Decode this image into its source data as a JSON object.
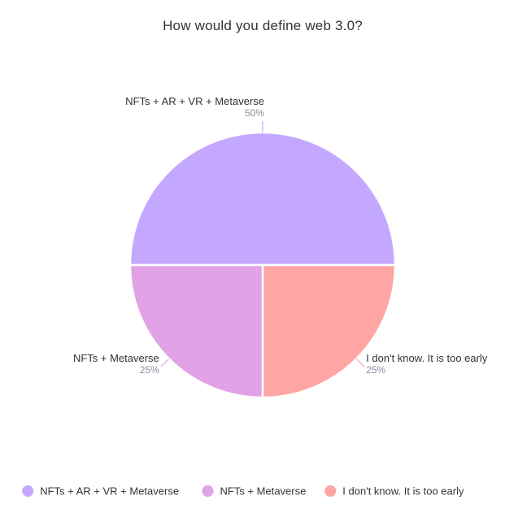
{
  "chart_data": {
    "type": "pie",
    "title": "How would you define web 3.0?",
    "slices": [
      {
        "label": "NFTs + AR + VR + Metaverse",
        "value": 50,
        "percent_label": "50%",
        "color": "#c4a8ff"
      },
      {
        "label": "I don't know. It is too early",
        "value": 25,
        "percent_label": "25%",
        "color": "#ffa5a3"
      },
      {
        "label": "NFTs + Metaverse",
        "value": 25,
        "percent_label": "25%",
        "color": "#e2a2e6"
      }
    ],
    "legend": {
      "placement": "bottom",
      "order": [
        "NFTs + AR + VR + Metaverse",
        "NFTs + Metaverse",
        "I don't know. It is too early"
      ]
    }
  }
}
